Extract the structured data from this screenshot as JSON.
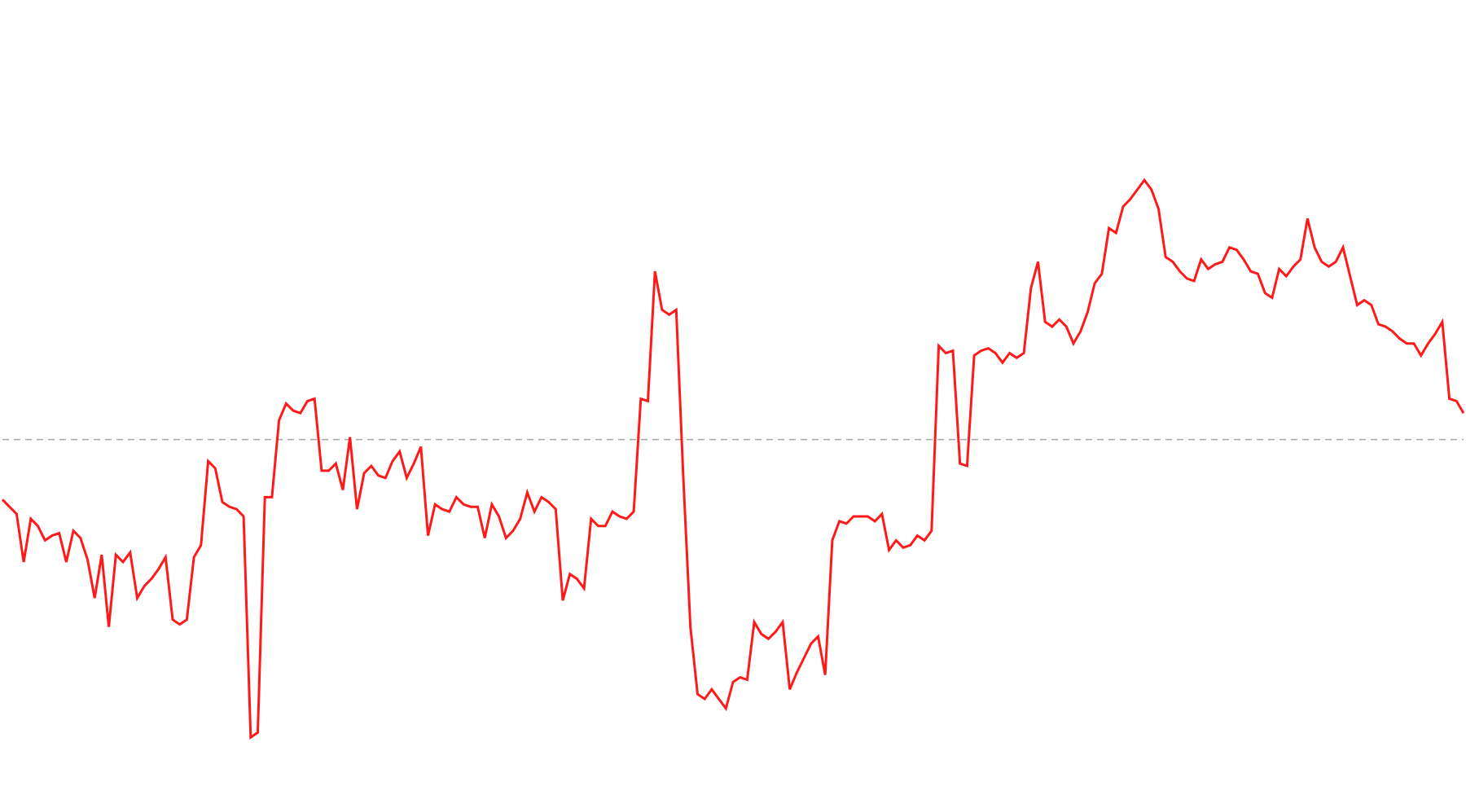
{
  "chart_data": {
    "type": "line",
    "title": "",
    "xlabel": "",
    "ylabel": "",
    "grid": false,
    "legend": "none",
    "baseline": 0,
    "ylim": [
      -14.8,
      18.3
    ],
    "series": [
      {
        "name": "",
        "color": "#ff1a1a",
        "values": [
          -2.5,
          -2.8,
          -3.1,
          -5.1,
          -3.3,
          -3.6,
          -4.2,
          -4.0,
          -3.9,
          -5.1,
          -3.8,
          -4.1,
          -5.0,
          -6.6,
          -4.8,
          -7.8,
          -4.8,
          -5.1,
          -4.7,
          -6.6,
          -6.1,
          -5.8,
          -5.4,
          -4.9,
          -7.5,
          -7.7,
          -7.5,
          -4.9,
          -4.4,
          -0.9,
          -1.2,
          -2.6,
          -2.8,
          -2.9,
          -3.2,
          -12.4,
          -12.2,
          -2.4,
          -2.4,
          0.8,
          1.5,
          1.2,
          1.1,
          1.6,
          1.7,
          -1.3,
          -1.3,
          -1.0,
          -2.1,
          0.1,
          -2.9,
          -1.4,
          -1.1,
          -1.5,
          -1.6,
          -0.9,
          -0.5,
          -1.6,
          -1.0,
          -0.3,
          -4.0,
          -2.7,
          -2.9,
          -3.0,
          -2.4,
          -2.7,
          -2.8,
          -2.8,
          -4.1,
          -2.7,
          -3.2,
          -4.1,
          -3.8,
          -3.3,
          -2.2,
          -3.0,
          -2.4,
          -2.6,
          -2.9,
          -6.7,
          -5.6,
          -5.8,
          -6.2,
          -3.3,
          -3.6,
          -3.6,
          -3.0,
          -3.2,
          -3.3,
          -3.0,
          1.7,
          1.6,
          7.0,
          5.4,
          5.2,
          5.4,
          -1.6,
          -7.8,
          -10.6,
          -10.8,
          -10.4,
          -10.8,
          -11.2,
          -10.1,
          -9.9,
          -10.0,
          -7.6,
          -8.1,
          -8.3,
          -8.0,
          -7.6,
          -10.4,
          -9.7,
          -9.1,
          -8.5,
          -8.2,
          -9.8,
          -4.2,
          -3.4,
          -3.5,
          -3.2,
          -3.2,
          -3.2,
          -3.4,
          -3.1,
          -4.6,
          -4.2,
          -4.5,
          -4.4,
          -4.0,
          -4.2,
          -3.8,
          3.9,
          3.6,
          3.7,
          -1.0,
          -1.1,
          3.5,
          3.7,
          3.8,
          3.6,
          3.2,
          3.6,
          3.4,
          3.6,
          6.3,
          7.4,
          4.9,
          4.7,
          5.0,
          4.7,
          4.0,
          4.5,
          5.3,
          6.5,
          6.9,
          8.8,
          8.6,
          9.7,
          10.0,
          10.4,
          10.8,
          10.4,
          9.6,
          7.6,
          7.4,
          7.0,
          6.7,
          6.6,
          7.5,
          7.1,
          7.3,
          7.4,
          8.0,
          7.9,
          7.5,
          7.0,
          6.9,
          6.1,
          5.9,
          7.1,
          6.8,
          7.2,
          7.5,
          9.2,
          8.0,
          7.4,
          7.2,
          7.4,
          8.0,
          6.8,
          5.6,
          5.8,
          5.6,
          4.8,
          4.7,
          4.5,
          4.2,
          4.0,
          4.0,
          3.5,
          4.0,
          4.4,
          4.9,
          1.7,
          1.6,
          1.1
        ]
      }
    ]
  }
}
